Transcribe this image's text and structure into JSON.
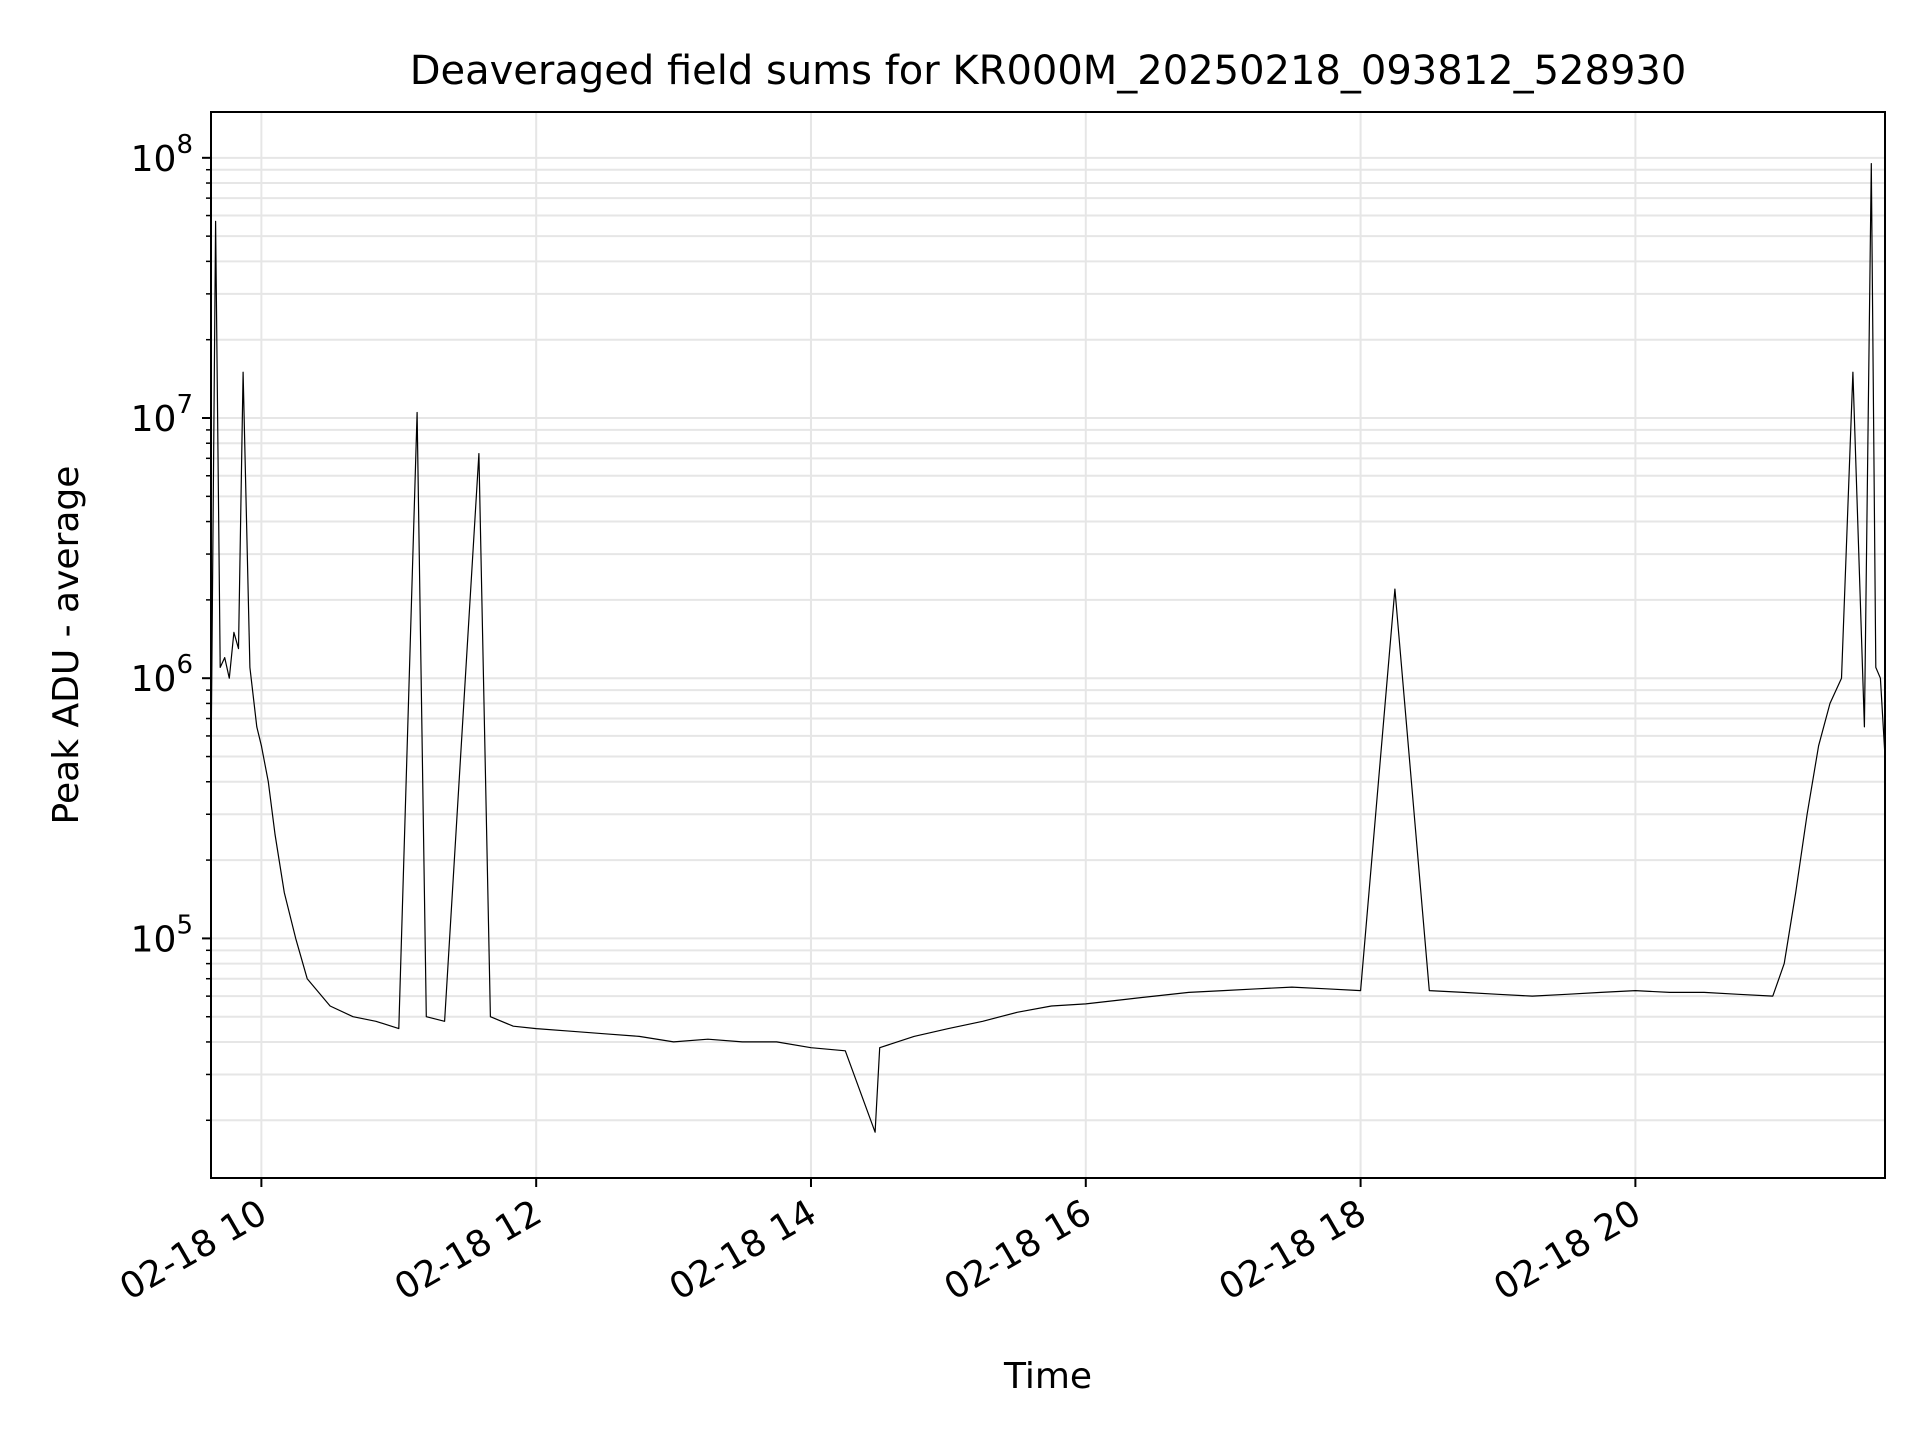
{
  "chart_data": {
    "type": "line",
    "title": "Deaveraged field sums for KR000M_20250218_093812_528930",
    "xlabel": "Time",
    "ylabel": "Peak ADU - average",
    "yscale": "log",
    "ylim": [
      12000,
      150000000
    ],
    "xlim": [
      "02-18 09:38",
      "02-18 21:49"
    ],
    "grid": true,
    "line_color": "#000000",
    "grid_color": "#e6e6e6",
    "x_ticks": [
      {
        "label": "02-18 10",
        "value": "02-18 10:00"
      },
      {
        "label": "02-18 12",
        "value": "02-18 12:00"
      },
      {
        "label": "02-18 14",
        "value": "02-18 14:00"
      },
      {
        "label": "02-18 16",
        "value": "02-18 16:00"
      },
      {
        "label": "02-18 18",
        "value": "02-18 18:00"
      },
      {
        "label": "02-18 20",
        "value": "02-18 20:00"
      }
    ],
    "y_ticks": [
      {
        "base": "10",
        "exp": "5",
        "value": 100000
      },
      {
        "base": "10",
        "exp": "6",
        "value": 1000000
      },
      {
        "base": "10",
        "exp": "7",
        "value": 10000000
      },
      {
        "base": "10",
        "exp": "8",
        "value": 100000000
      }
    ],
    "series": [
      {
        "x": [
          "02-18 09:38",
          "02-18 09:40",
          "02-18 09:42",
          "02-18 09:44",
          "02-18 09:46",
          "02-18 09:48",
          "02-18 09:50",
          "02-18 09:52",
          "02-18 09:55",
          "02-18 09:58",
          "02-18 10:00",
          "02-18 10:03",
          "02-18 10:06",
          "02-18 10:10",
          "02-18 10:15",
          "02-18 10:20",
          "02-18 10:30",
          "02-18 10:40",
          "02-18 10:50",
          "02-18 11:00",
          "02-18 11:08",
          "02-18 11:12",
          "02-18 11:20",
          "02-18 11:35",
          "02-18 11:40",
          "02-18 11:50",
          "02-18 12:00",
          "02-18 12:15",
          "02-18 12:30",
          "02-18 12:45",
          "02-18 13:00",
          "02-18 13:15",
          "02-18 13:30",
          "02-18 13:45",
          "02-18 14:00",
          "02-18 14:15",
          "02-18 14:28",
          "02-18 14:30",
          "02-18 14:45",
          "02-18 15:00",
          "02-18 15:15",
          "02-18 15:30",
          "02-18 15:45",
          "02-18 16:00",
          "02-18 16:15",
          "02-18 16:30",
          "02-18 16:45",
          "02-18 17:00",
          "02-18 17:15",
          "02-18 17:30",
          "02-18 17:45",
          "02-18 18:00",
          "02-18 18:15",
          "02-18 18:30",
          "02-18 18:45",
          "02-18 19:00",
          "02-18 19:15",
          "02-18 19:30",
          "02-18 19:45",
          "02-18 20:00",
          "02-18 20:15",
          "02-18 20:30",
          "02-18 20:45",
          "02-18 21:00",
          "02-18 21:05",
          "02-18 21:10",
          "02-18 21:15",
          "02-18 21:20",
          "02-18 21:25",
          "02-18 21:30",
          "02-18 21:35",
          "02-18 21:40",
          "02-18 21:43",
          "02-18 21:45",
          "02-18 21:47",
          "02-18 21:49"
        ],
        "y": [
          450000,
          57000000,
          1100000,
          1200000,
          1000000,
          1500000,
          1300000,
          15000000,
          1100000,
          650000,
          550000,
          400000,
          250000,
          150000,
          100000,
          70000,
          55000,
          50000,
          48000,
          45000,
          10500000,
          50000,
          48000,
          7300000,
          50000,
          46000,
          45000,
          44000,
          43000,
          42000,
          40000,
          41000,
          40000,
          40000,
          38000,
          37000,
          18000,
          38000,
          42000,
          45000,
          48000,
          52000,
          55000,
          56000,
          58000,
          60000,
          62000,
          63000,
          64000,
          65000,
          64000,
          63000,
          2200000,
          63000,
          62000,
          61000,
          60000,
          61000,
          62000,
          63000,
          62000,
          62000,
          61000,
          60000,
          80000,
          150000,
          300000,
          550000,
          800000,
          1000000,
          15000000,
          650000,
          95000000,
          1100000,
          1000000,
          500000
        ]
      }
    ]
  }
}
